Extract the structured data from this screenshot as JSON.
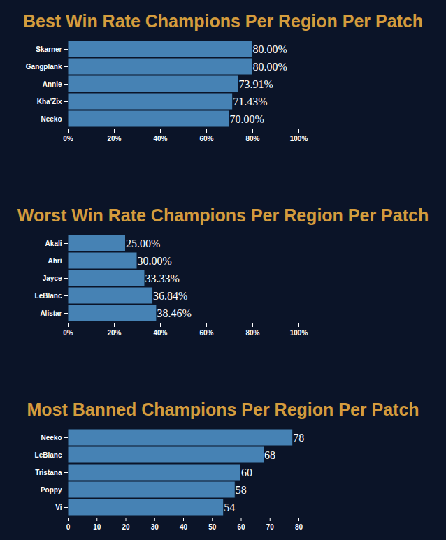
{
  "chart_data": [
    {
      "type": "bar",
      "orientation": "horizontal",
      "title": "Best Win Rate Champions Per Region Per Patch",
      "categories": [
        "Skarner",
        "Gangplank",
        "Annie",
        "Kha'Zix",
        "Neeko"
      ],
      "values": [
        80,
        80,
        73.91,
        71.43,
        70
      ],
      "value_labels": [
        "80.00%",
        "80.00%",
        "73.91%",
        "71.43%",
        "70.00%"
      ],
      "data_labels": true,
      "color": "#4682b4",
      "xlim": [
        0,
        100
      ],
      "xticks": [
        {
          "value": 0,
          "label": "0%"
        },
        {
          "value": 20,
          "label": "20%"
        },
        {
          "value": 40,
          "label": "40%"
        },
        {
          "value": 60,
          "label": "60%"
        },
        {
          "value": 80,
          "label": "80%"
        },
        {
          "value": 100,
          "label": "100%"
        }
      ]
    },
    {
      "type": "bar",
      "orientation": "horizontal",
      "title": "Worst Win Rate Champions Per Region Per Patch",
      "categories": [
        "Akali",
        "Ahri",
        "Jayce",
        "LeBlanc",
        "Alistar"
      ],
      "values": [
        25,
        30,
        33.33,
        36.84,
        38.46
      ],
      "value_labels": [
        "25.00%",
        "30.00%",
        "33.33%",
        "36.84%",
        "38.46%"
      ],
      "data_labels": true,
      "color": "#4682b4",
      "xlim": [
        0,
        100
      ],
      "xticks": [
        {
          "value": 0,
          "label": "0%"
        },
        {
          "value": 20,
          "label": "20%"
        },
        {
          "value": 40,
          "label": "40%"
        },
        {
          "value": 60,
          "label": "60%"
        },
        {
          "value": 80,
          "label": "80%"
        },
        {
          "value": 100,
          "label": "100%"
        }
      ]
    },
    {
      "type": "bar",
      "orientation": "horizontal",
      "title": "Most Banned Champions Per Region Per Patch",
      "categories": [
        "Neeko",
        "LeBlanc",
        "Tristana",
        "Poppy",
        "Vi"
      ],
      "values": [
        78,
        68,
        60,
        58,
        54
      ],
      "data_labels": true,
      "color": "#4682b4",
      "xlim": [
        0,
        80
      ],
      "xticks": [
        0,
        10,
        20,
        30,
        40,
        50,
        60,
        70,
        80
      ]
    }
  ]
}
